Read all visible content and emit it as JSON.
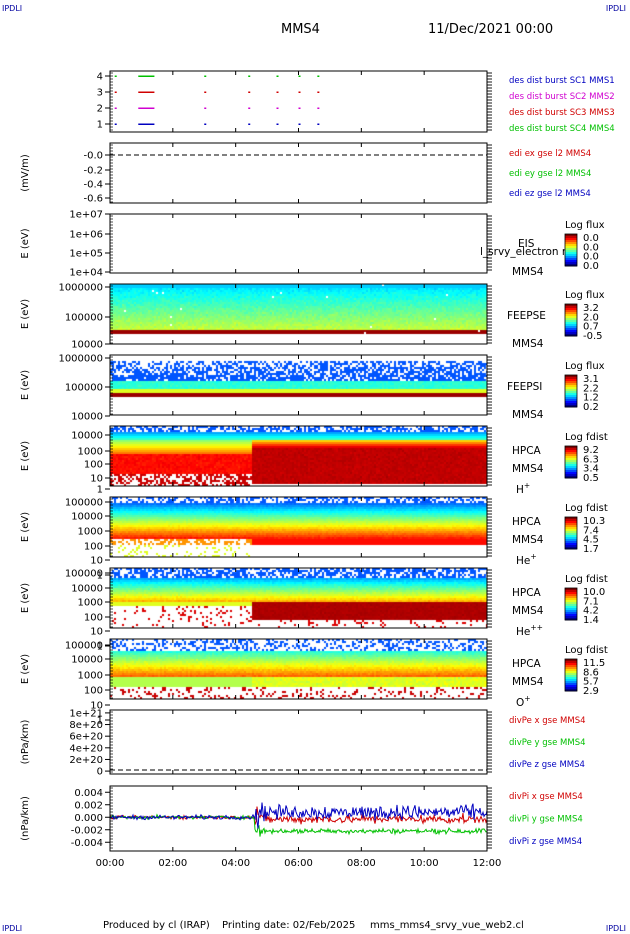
{
  "header": {
    "corner_left": "IPDLI",
    "corner_right": "IPDLI",
    "spacecraft": "MMS4",
    "datetime": "11/Dec/2021 00:00"
  },
  "footer": {
    "produced_by": "Produced by cl (IRAP)",
    "printing_date": "Printing date: 02/Feb/2025",
    "script_name": "mms_mms4_srvy_vue_web2.cl",
    "corner_left": "IPDLI",
    "corner_right": "IPDLI"
  },
  "chart_data": {
    "type": "line",
    "x_ticks": [
      "00:00",
      "02:00",
      "04:00",
      "06:00",
      "08:00",
      "10:00",
      "12:00"
    ],
    "x_range_hours": [
      0,
      12
    ],
    "panels": [
      {
        "id": "burst",
        "type": "scatter",
        "ylabel": "",
        "y_ticks": [
          "4",
          "3",
          "2",
          "1"
        ],
        "y_values": [
          4,
          3,
          2,
          1
        ],
        "ylim": [
          0.5,
          4.5
        ],
        "legend": [
          {
            "text": "des dist burst SC1 MMS1",
            "color": "#0000c0"
          },
          {
            "text": "des dist burst SC2 MMS2",
            "color": "#d000d0"
          },
          {
            "text": "des dist burst SC3 MMS3",
            "color": "#d00000"
          },
          {
            "text": "des dist burst SC4 MMS4",
            "color": "#00c000"
          }
        ],
        "burst_times_hours": [
          0.15,
          0.9,
          1.05,
          1.2,
          1.35,
          3.0,
          4.4,
          5.3,
          6.0,
          6.6
        ]
      },
      {
        "id": "edi",
        "type": "line",
        "ylabel": "(mV/m)",
        "y_ticks": [
          "-0.0",
          "-0.2",
          "-0.4",
          "-0.6"
        ],
        "y_values": [
          0,
          -0.2,
          -0.4,
          -0.6
        ],
        "ylim": [
          -0.6,
          0.1
        ],
        "dashed_at": 0,
        "legend": [
          {
            "text": "edi ex gse l2 MMS4",
            "color": "#d00000"
          },
          {
            "text": "edi ey gse l2 MMS4",
            "color": "#00c000"
          },
          {
            "text": "edi ez gse l2 MMS4",
            "color": "#0000c0"
          }
        ]
      },
      {
        "id": "eis",
        "type": "heatmap",
        "ylabel": "E (eV)",
        "y_ticks": [
          "1e+07",
          "1e+06",
          "1e+05",
          "1e+04"
        ],
        "log_range": [
          4,
          7
        ],
        "labels": [
          "EIS",
          "MMS4"
        ],
        "overlap_text": "l_srvy_electron ro",
        "colorbar_title": "Log flux",
        "colorbar_ticks": [
          "0.0",
          "0.0",
          "0.0",
          "0.0"
        ],
        "fill": "empty"
      },
      {
        "id": "feepse",
        "type": "heatmap",
        "ylabel": "E (eV)",
        "y_ticks": [
          "1000000",
          "100000",
          "10000"
        ],
        "log_range": [
          4,
          6
        ],
        "labels": [
          "FEEPSE",
          "MMS4"
        ],
        "colorbar_title": "Log flux",
        "colorbar_ticks": [
          "3.2",
          "2.0",
          "0.7",
          "-0.5"
        ],
        "fill": "feeps_e"
      },
      {
        "id": "feepsi",
        "type": "heatmap",
        "ylabel": "E (eV)",
        "y_ticks": [
          "1000000",
          "100000",
          "10000"
        ],
        "log_range": [
          4,
          6
        ],
        "labels": [
          "FEEPSI",
          "MMS4"
        ],
        "colorbar_title": "Log flux",
        "colorbar_ticks": [
          "3.1",
          "2.2",
          "1.2",
          "0.2"
        ],
        "fill": "feeps_i"
      },
      {
        "id": "hpca_h",
        "type": "heatmap",
        "ylabel": "E (eV)",
        "y_ticks": [
          "10000",
          "1000",
          "100",
          "10",
          "1"
        ],
        "log_range": [
          0,
          4.4
        ],
        "labels": [
          "HPCA",
          "MMS4",
          "H+"
        ],
        "colorbar_title": "Log fdist",
        "colorbar_ticks": [
          "9.2",
          "6.3",
          "3.4",
          "0.5"
        ],
        "fill": "hpca_h"
      },
      {
        "id": "hpca_he1",
        "type": "heatmap",
        "ylabel": "E (eV)",
        "y_ticks": [
          "100000",
          "10000",
          "1000",
          "100",
          "10",
          "1"
        ],
        "log_range": [
          0,
          5
        ],
        "labels": [
          "HPCA",
          "MMS4",
          "He+"
        ],
        "colorbar_title": "Log fdist",
        "colorbar_ticks": [
          "10.3",
          "7.4",
          "4.5",
          "1.7"
        ],
        "fill": "hpca_he1"
      },
      {
        "id": "hpca_he2",
        "type": "heatmap",
        "ylabel": "E (eV)",
        "y_ticks": [
          "100000",
          "10000",
          "1000",
          "100",
          "10",
          "1"
        ],
        "log_range": [
          0,
          5
        ],
        "labels": [
          "HPCA",
          "MMS4",
          "He++"
        ],
        "colorbar_title": "Log fdist",
        "colorbar_ticks": [
          "10.0",
          "7.1",
          "4.2",
          "1.4"
        ],
        "fill": "hpca_he2"
      },
      {
        "id": "hpca_o",
        "type": "heatmap",
        "ylabel": "E (eV)",
        "y_ticks": [
          "100000",
          "10000",
          "1000",
          "100",
          "10",
          "1"
        ],
        "log_range": [
          0,
          5
        ],
        "labels": [
          "HPCA",
          "MMS4",
          "O+"
        ],
        "colorbar_title": "Log fdist",
        "colorbar_ticks": [
          "11.5",
          "8.6",
          "5.7",
          "2.9"
        ],
        "fill": "hpca_o"
      },
      {
        "id": "divpe",
        "type": "line",
        "ylabel": "(nPa/km)",
        "y_ticks": [
          "1e+21",
          "8e+20",
          "6e+20",
          "4e+20",
          "2e+20",
          "0"
        ],
        "y_values": [
          1e+21,
          8e+20,
          6e+20,
          4e+20,
          2e+20,
          0
        ],
        "ylim": [
          -5e+19,
          1.05e+21
        ],
        "dashed_at": 0,
        "legend": [
          {
            "text": "divPe x gse MMS4",
            "color": "#d00000"
          },
          {
            "text": "divPe y gse MMS4",
            "color": "#00c000"
          },
          {
            "text": "divPe z gse MMS4",
            "color": "#0000c0"
          }
        ]
      },
      {
        "id": "divpi",
        "type": "line",
        "ylabel": "(nPa/km)",
        "y_ticks": [
          "0.004",
          "0.002",
          "0.000",
          "-0.002",
          "-0.004"
        ],
        "y_values": [
          0.004,
          0.002,
          0,
          -0.002,
          -0.004
        ],
        "ylim": [
          -0.0054,
          0.005
        ],
        "legend": [
          {
            "text": "divPi x gse MMS4",
            "color": "#d00000"
          },
          {
            "text": "divPi y gse MMS4",
            "color": "#00c000"
          },
          {
            "text": "divPi z gse MMS4",
            "color": "#0000c0"
          }
        ],
        "series": [
          {
            "name": "divPi x gse MMS4",
            "color": "#d00000",
            "quiet_level": 0.0,
            "quiet_noise": 0.0004,
            "event_hour": 4.6,
            "active_level": -0.0003,
            "active_noise": 0.001
          },
          {
            "name": "divPi y gse MMS4",
            "color": "#00c000",
            "quiet_level": 0.0,
            "quiet_noise": 0.0004,
            "event_hour": 4.6,
            "active_level": -0.0022,
            "active_noise": 0.0006
          },
          {
            "name": "divPi z gse MMS4",
            "color": "#0000c0",
            "quiet_level": 0.0,
            "quiet_noise": 0.0005,
            "event_hour": 4.6,
            "active_level": 0.0008,
            "active_noise": 0.0017
          }
        ]
      }
    ]
  }
}
